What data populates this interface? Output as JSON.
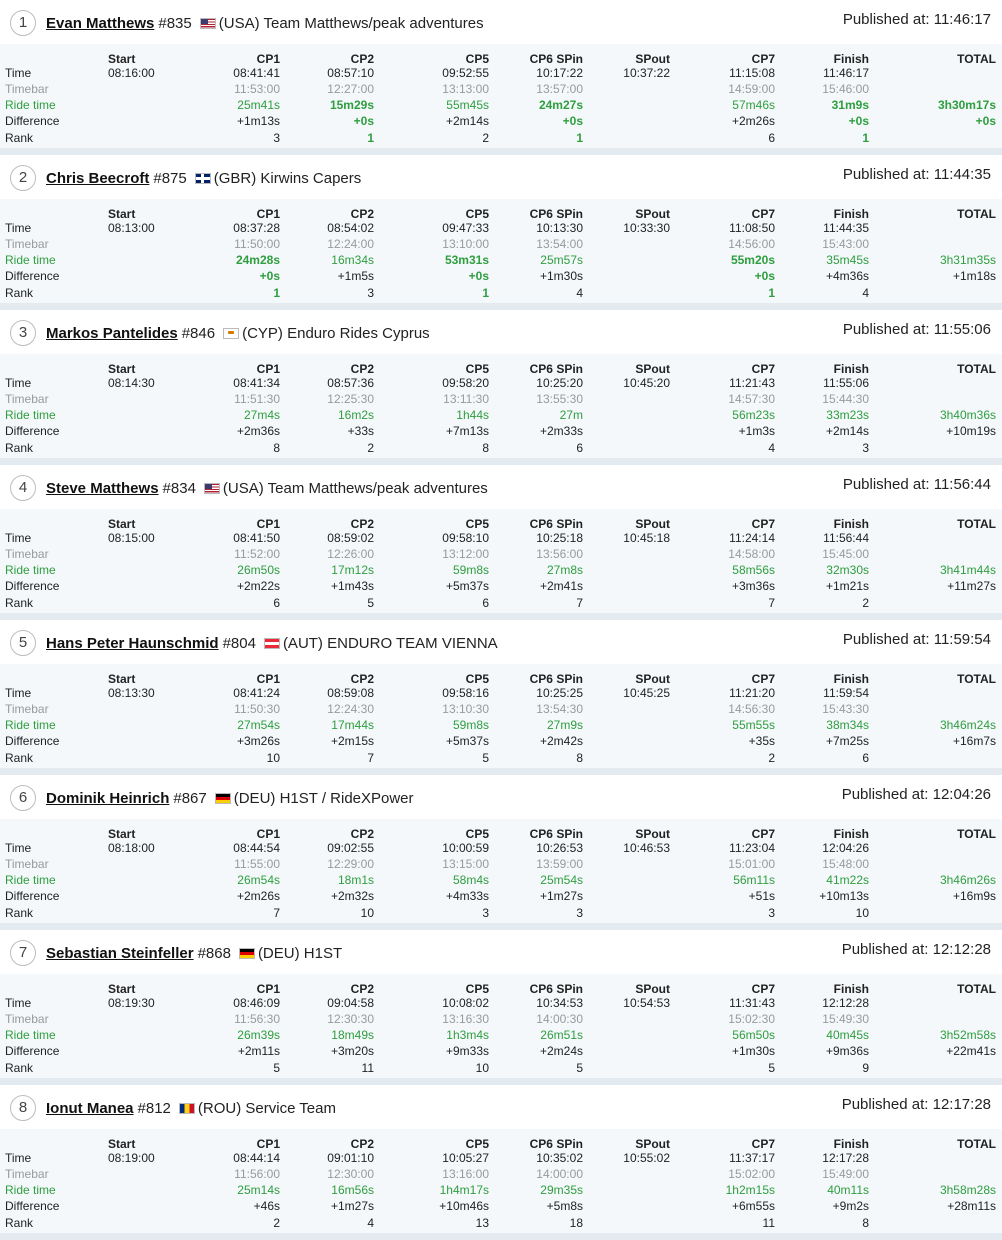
{
  "row_labels": {
    "time": "Time",
    "timebar": "Timebar",
    "ride_time": "Ride time",
    "difference": "Difference",
    "rank": "Rank"
  },
  "published_label": "Published at:",
  "columns": [
    "Start",
    "CP1",
    "CP2",
    "CP5",
    "CP6 SPin",
    "SPout",
    "CP7",
    "Finish",
    "TOTAL"
  ],
  "flags": {
    "USA": {
      "colors": [
        "#b22234",
        "#ffffff",
        "#3c3b6e"
      ]
    },
    "GBR": {
      "colors": [
        "#012169",
        "#c8102e",
        "#ffffff"
      ]
    },
    "CYP": {
      "colors": [
        "#ffffff",
        "#d57800",
        "#4e5b31"
      ]
    },
    "AUT": {
      "colors": [
        "#ed2939",
        "#ffffff",
        "#ed2939"
      ]
    },
    "DEU": {
      "colors": [
        "#000000",
        "#dd0000",
        "#ffce00"
      ]
    },
    "ROU": {
      "colors": [
        "#002b7f",
        "#fcd116",
        "#ce1126"
      ]
    }
  },
  "entries": [
    {
      "position": "1",
      "name": "Evan Matthews",
      "number": "#835",
      "country": "USA",
      "country_label": "(USA)",
      "team": "Team Matthews/peak adventures",
      "published": "11:46:17",
      "start": "08:16:00",
      "time": [
        "08:41:41",
        "08:57:10",
        "09:52:55",
        "10:17:22",
        "10:37:22",
        "11:15:08",
        "11:46:17"
      ],
      "timebar": [
        "11:53:00",
        "12:27:00",
        "13:13:00",
        "13:57:00",
        "",
        "14:59:00",
        "15:46:00"
      ],
      "ride_time": [
        "25m41s",
        "15m29s",
        "55m45s",
        "24m27s",
        "",
        "57m46s",
        "31m9s",
        "3h30m17s"
      ],
      "difference": [
        "+1m13s",
        "+0s",
        "+2m14s",
        "+0s",
        "",
        "+2m26s",
        "+0s",
        "+0s"
      ],
      "rank": [
        "3",
        "1",
        "2",
        "1",
        "",
        "6",
        "1",
        ""
      ],
      "best": [
        false,
        true,
        false,
        true,
        false,
        false,
        true,
        true
      ]
    },
    {
      "position": "2",
      "name": "Chris Beecroft",
      "number": "#875",
      "country": "GBR",
      "country_label": "(GBR)",
      "team": "Kirwins Capers",
      "published": "11:44:35",
      "start": "08:13:00",
      "time": [
        "08:37:28",
        "08:54:02",
        "09:47:33",
        "10:13:30",
        "10:33:30",
        "11:08:50",
        "11:44:35"
      ],
      "timebar": [
        "11:50:00",
        "12:24:00",
        "13:10:00",
        "13:54:00",
        "",
        "14:56:00",
        "15:43:00"
      ],
      "ride_time": [
        "24m28s",
        "16m34s",
        "53m31s",
        "25m57s",
        "",
        "55m20s",
        "35m45s",
        "3h31m35s"
      ],
      "difference": [
        "+0s",
        "+1m5s",
        "+0s",
        "+1m30s",
        "",
        "+0s",
        "+4m36s",
        "+1m18s"
      ],
      "rank": [
        "1",
        "3",
        "1",
        "4",
        "",
        "1",
        "4",
        ""
      ],
      "best": [
        true,
        false,
        true,
        false,
        false,
        true,
        false,
        false
      ]
    },
    {
      "position": "3",
      "name": "Markos Pantelides",
      "number": "#846",
      "country": "CYP",
      "country_label": "(CYP)",
      "team": "Enduro Rides Cyprus",
      "published": "11:55:06",
      "start": "08:14:30",
      "time": [
        "08:41:34",
        "08:57:36",
        "09:58:20",
        "10:25:20",
        "10:45:20",
        "11:21:43",
        "11:55:06"
      ],
      "timebar": [
        "11:51:30",
        "12:25:30",
        "13:11:30",
        "13:55:30",
        "",
        "14:57:30",
        "15:44:30"
      ],
      "ride_time": [
        "27m4s",
        "16m2s",
        "1h44s",
        "27m",
        "",
        "56m23s",
        "33m23s",
        "3h40m36s"
      ],
      "difference": [
        "+2m36s",
        "+33s",
        "+7m13s",
        "+2m33s",
        "",
        "+1m3s",
        "+2m14s",
        "+10m19s"
      ],
      "rank": [
        "8",
        "2",
        "8",
        "6",
        "",
        "4",
        "3",
        ""
      ],
      "best": [
        false,
        false,
        false,
        false,
        false,
        false,
        false,
        false
      ]
    },
    {
      "position": "4",
      "name": "Steve Matthews",
      "number": "#834",
      "country": "USA",
      "country_label": "(USA)",
      "team": "Team Matthews/peak adventures",
      "published": "11:56:44",
      "start": "08:15:00",
      "time": [
        "08:41:50",
        "08:59:02",
        "09:58:10",
        "10:25:18",
        "10:45:18",
        "11:24:14",
        "11:56:44"
      ],
      "timebar": [
        "11:52:00",
        "12:26:00",
        "13:12:00",
        "13:56:00",
        "",
        "14:58:00",
        "15:45:00"
      ],
      "ride_time": [
        "26m50s",
        "17m12s",
        "59m8s",
        "27m8s",
        "",
        "58m56s",
        "32m30s",
        "3h41m44s"
      ],
      "difference": [
        "+2m22s",
        "+1m43s",
        "+5m37s",
        "+2m41s",
        "",
        "+3m36s",
        "+1m21s",
        "+11m27s"
      ],
      "rank": [
        "6",
        "5",
        "6",
        "7",
        "",
        "7",
        "2",
        ""
      ],
      "best": [
        false,
        false,
        false,
        false,
        false,
        false,
        false,
        false
      ]
    },
    {
      "position": "5",
      "name": "Hans Peter Haunschmid",
      "number": "#804",
      "country": "AUT",
      "country_label": "(AUT)",
      "team": "ENDURO TEAM VIENNA",
      "published": "11:59:54",
      "start": "08:13:30",
      "time": [
        "08:41:24",
        "08:59:08",
        "09:58:16",
        "10:25:25",
        "10:45:25",
        "11:21:20",
        "11:59:54"
      ],
      "timebar": [
        "11:50:30",
        "12:24:30",
        "13:10:30",
        "13:54:30",
        "",
        "14:56:30",
        "15:43:30"
      ],
      "ride_time": [
        "27m54s",
        "17m44s",
        "59m8s",
        "27m9s",
        "",
        "55m55s",
        "38m34s",
        "3h46m24s"
      ],
      "difference": [
        "+3m26s",
        "+2m15s",
        "+5m37s",
        "+2m42s",
        "",
        "+35s",
        "+7m25s",
        "+16m7s"
      ],
      "rank": [
        "10",
        "7",
        "5",
        "8",
        "",
        "2",
        "6",
        ""
      ],
      "best": [
        false,
        false,
        false,
        false,
        false,
        false,
        false,
        false
      ]
    },
    {
      "position": "6",
      "name": "Dominik Heinrich",
      "number": "#867",
      "country": "DEU",
      "country_label": "(DEU)",
      "team": "H1ST / RideXPower",
      "published": "12:04:26",
      "start": "08:18:00",
      "time": [
        "08:44:54",
        "09:02:55",
        "10:00:59",
        "10:26:53",
        "10:46:53",
        "11:23:04",
        "12:04:26"
      ],
      "timebar": [
        "11:55:00",
        "12:29:00",
        "13:15:00",
        "13:59:00",
        "",
        "15:01:00",
        "15:48:00"
      ],
      "ride_time": [
        "26m54s",
        "18m1s",
        "58m4s",
        "25m54s",
        "",
        "56m11s",
        "41m22s",
        "3h46m26s"
      ],
      "difference": [
        "+2m26s",
        "+2m32s",
        "+4m33s",
        "+1m27s",
        "",
        "+51s",
        "+10m13s",
        "+16m9s"
      ],
      "rank": [
        "7",
        "10",
        "3",
        "3",
        "",
        "3",
        "10",
        ""
      ],
      "best": [
        false,
        false,
        false,
        false,
        false,
        false,
        false,
        false
      ]
    },
    {
      "position": "7",
      "name": "Sebastian Steinfeller",
      "number": "#868",
      "country": "DEU",
      "country_label": "(DEU)",
      "team": "H1ST",
      "published": "12:12:28",
      "start": "08:19:30",
      "time": [
        "08:46:09",
        "09:04:58",
        "10:08:02",
        "10:34:53",
        "10:54:53",
        "11:31:43",
        "12:12:28"
      ],
      "timebar": [
        "11:56:30",
        "12:30:30",
        "13:16:30",
        "14:00:30",
        "",
        "15:02:30",
        "15:49:30"
      ],
      "ride_time": [
        "26m39s",
        "18m49s",
        "1h3m4s",
        "26m51s",
        "",
        "56m50s",
        "40m45s",
        "3h52m58s"
      ],
      "difference": [
        "+2m11s",
        "+3m20s",
        "+9m33s",
        "+2m24s",
        "",
        "+1m30s",
        "+9m36s",
        "+22m41s"
      ],
      "rank": [
        "5",
        "11",
        "10",
        "5",
        "",
        "5",
        "9",
        ""
      ],
      "best": [
        false,
        false,
        false,
        false,
        false,
        false,
        false,
        false
      ]
    },
    {
      "position": "8",
      "name": "Ionut Manea",
      "number": "#812",
      "country": "ROU",
      "country_label": "(ROU)",
      "team": "Service Team",
      "published": "12:17:28",
      "start": "08:19:00",
      "time": [
        "08:44:14",
        "09:01:10",
        "10:05:27",
        "10:35:02",
        "10:55:02",
        "11:37:17",
        "12:17:28"
      ],
      "timebar": [
        "11:56:00",
        "12:30:00",
        "13:16:00",
        "14:00:00",
        "",
        "15:02:00",
        "15:49:00"
      ],
      "ride_time": [
        "25m14s",
        "16m56s",
        "1h4m17s",
        "29m35s",
        "",
        "1h2m15s",
        "40m11s",
        "3h58m28s"
      ],
      "difference": [
        "+46s",
        "+1m27s",
        "+10m46s",
        "+5m8s",
        "",
        "+6m55s",
        "+9m2s",
        "+28m11s"
      ],
      "rank": [
        "2",
        "4",
        "13",
        "18",
        "",
        "11",
        "8",
        ""
      ],
      "best": [
        false,
        false,
        false,
        false,
        false,
        false,
        false,
        false
      ]
    }
  ]
}
